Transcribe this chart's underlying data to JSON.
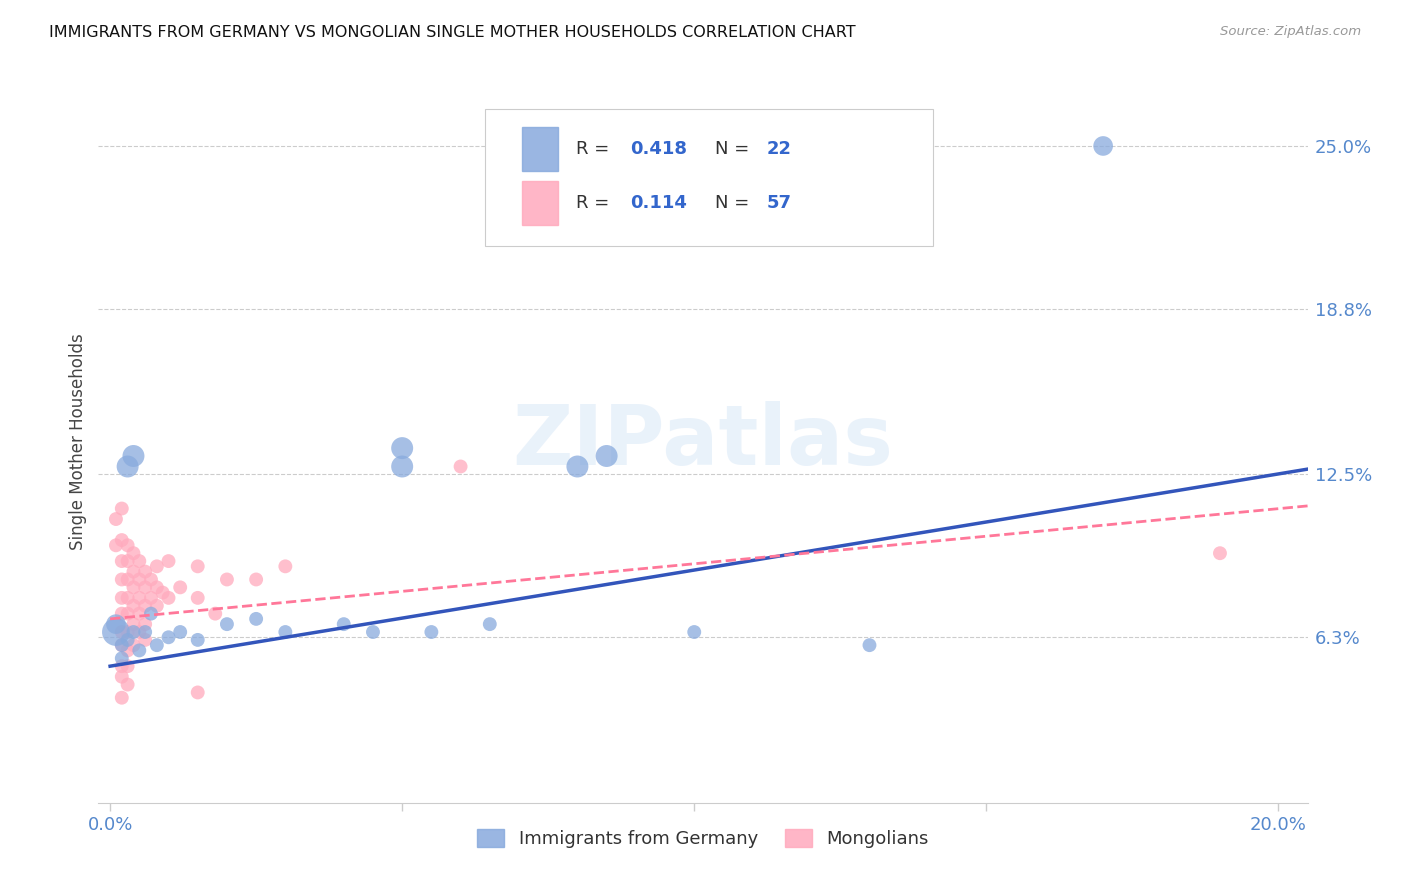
{
  "title": "IMMIGRANTS FROM GERMANY VS MONGOLIAN SINGLE MOTHER HOUSEHOLDS CORRELATION CHART",
  "source": "Source: ZipAtlas.com",
  "ylabel": "Single Mother Households",
  "xlabel_ticks": [
    "0.0%",
    "",
    "",
    "",
    "20.0%"
  ],
  "xlabel_vals": [
    0.0,
    0.05,
    0.1,
    0.15,
    0.2
  ],
  "ylabel_ticks": [
    "6.3%",
    "12.5%",
    "18.8%",
    "25.0%"
  ],
  "ylabel_vals": [
    0.063,
    0.125,
    0.188,
    0.25
  ],
  "xlim": [
    -0.002,
    0.205
  ],
  "ylim": [
    0.0,
    0.275
  ],
  "legend_labels": [
    "Immigrants from Germany",
    "Mongolians"
  ],
  "blue_color": "#88AADD",
  "pink_color": "#FFAABD",
  "blue_line_color": "#3355BB",
  "pink_line_color": "#FF7799",
  "watermark": "ZIPatlas",
  "blue_scatter": [
    [
      0.001,
      0.065
    ],
    [
      0.001,
      0.068
    ],
    [
      0.002,
      0.06
    ],
    [
      0.002,
      0.055
    ],
    [
      0.003,
      0.062
    ],
    [
      0.004,
      0.065
    ],
    [
      0.005,
      0.058
    ],
    [
      0.006,
      0.065
    ],
    [
      0.007,
      0.072
    ],
    [
      0.008,
      0.06
    ],
    [
      0.01,
      0.063
    ],
    [
      0.012,
      0.065
    ],
    [
      0.015,
      0.062
    ],
    [
      0.02,
      0.068
    ],
    [
      0.025,
      0.07
    ],
    [
      0.03,
      0.065
    ],
    [
      0.04,
      0.068
    ],
    [
      0.045,
      0.065
    ],
    [
      0.055,
      0.065
    ],
    [
      0.065,
      0.068
    ],
    [
      0.003,
      0.128
    ],
    [
      0.004,
      0.132
    ],
    [
      0.05,
      0.128
    ],
    [
      0.05,
      0.135
    ],
    [
      0.08,
      0.128
    ],
    [
      0.085,
      0.132
    ],
    [
      0.1,
      0.065
    ],
    [
      0.13,
      0.06
    ],
    [
      0.17,
      0.25
    ]
  ],
  "blue_sizes": [
    400,
    200,
    100,
    100,
    100,
    100,
    100,
    100,
    100,
    100,
    100,
    100,
    100,
    100,
    100,
    100,
    100,
    100,
    100,
    100,
    250,
    250,
    250,
    250,
    250,
    250,
    100,
    100,
    200
  ],
  "pink_scatter": [
    [
      0.001,
      0.108
    ],
    [
      0.001,
      0.098
    ],
    [
      0.002,
      0.112
    ],
    [
      0.002,
      0.1
    ],
    [
      0.002,
      0.092
    ],
    [
      0.002,
      0.085
    ],
    [
      0.002,
      0.078
    ],
    [
      0.002,
      0.072
    ],
    [
      0.002,
      0.065
    ],
    [
      0.002,
      0.06
    ],
    [
      0.002,
      0.052
    ],
    [
      0.002,
      0.048
    ],
    [
      0.002,
      0.04
    ],
    [
      0.003,
      0.098
    ],
    [
      0.003,
      0.092
    ],
    [
      0.003,
      0.085
    ],
    [
      0.003,
      0.078
    ],
    [
      0.003,
      0.072
    ],
    [
      0.003,
      0.065
    ],
    [
      0.003,
      0.058
    ],
    [
      0.003,
      0.052
    ],
    [
      0.003,
      0.045
    ],
    [
      0.004,
      0.095
    ],
    [
      0.004,
      0.088
    ],
    [
      0.004,
      0.082
    ],
    [
      0.004,
      0.075
    ],
    [
      0.004,
      0.068
    ],
    [
      0.004,
      0.06
    ],
    [
      0.005,
      0.092
    ],
    [
      0.005,
      0.085
    ],
    [
      0.005,
      0.078
    ],
    [
      0.005,
      0.072
    ],
    [
      0.005,
      0.065
    ],
    [
      0.006,
      0.088
    ],
    [
      0.006,
      0.082
    ],
    [
      0.006,
      0.075
    ],
    [
      0.006,
      0.068
    ],
    [
      0.006,
      0.062
    ],
    [
      0.007,
      0.085
    ],
    [
      0.007,
      0.078
    ],
    [
      0.008,
      0.09
    ],
    [
      0.008,
      0.082
    ],
    [
      0.008,
      0.075
    ],
    [
      0.009,
      0.08
    ],
    [
      0.01,
      0.092
    ],
    [
      0.01,
      0.078
    ],
    [
      0.012,
      0.082
    ],
    [
      0.015,
      0.09
    ],
    [
      0.015,
      0.078
    ],
    [
      0.018,
      0.072
    ],
    [
      0.02,
      0.085
    ],
    [
      0.025,
      0.085
    ],
    [
      0.03,
      0.09
    ],
    [
      0.06,
      0.128
    ],
    [
      0.015,
      0.042
    ],
    [
      0.19,
      0.095
    ]
  ],
  "pink_sizes": [
    100,
    100,
    100,
    100,
    100,
    100,
    100,
    100,
    100,
    100,
    100,
    100,
    100,
    100,
    100,
    100,
    100,
    100,
    100,
    100,
    100,
    100,
    100,
    100,
    100,
    100,
    100,
    100,
    100,
    100,
    100,
    100,
    100,
    100,
    100,
    100,
    100,
    100,
    100,
    100,
    100,
    100,
    100,
    100,
    100,
    100,
    100,
    100,
    100,
    100,
    100,
    100,
    100,
    100,
    100,
    100
  ],
  "blue_trendline": [
    [
      0.0,
      0.052
    ],
    [
      0.205,
      0.127
    ]
  ],
  "pink_trendline": [
    [
      0.0,
      0.07
    ],
    [
      0.205,
      0.113
    ]
  ]
}
